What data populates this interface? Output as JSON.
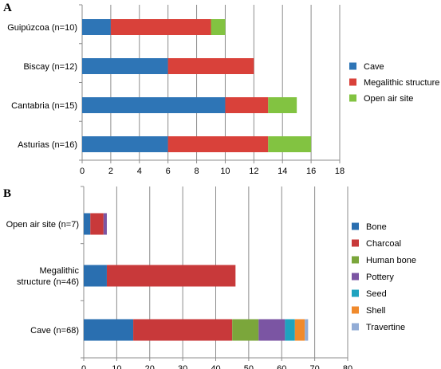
{
  "chart_data": [
    {
      "panel": "A",
      "type": "bar",
      "orientation": "horizontal",
      "stacked": true,
      "categories": [
        "Guipúzcoa (n=10)",
        "Biscay (n=12)",
        "Cantabria (n=15)",
        "Asturias (n=16)"
      ],
      "series": [
        {
          "name": "Cave",
          "color": "#2e75b6",
          "values": [
            2,
            6,
            10,
            6
          ]
        },
        {
          "name": "Megalithic structure",
          "color": "#d9413a",
          "values": [
            7,
            6,
            3,
            7
          ]
        },
        {
          "name": "Open air site",
          "color": "#82c341",
          "values": [
            1,
            0,
            2,
            3
          ]
        }
      ],
      "xlim": [
        0,
        18
      ],
      "xticks": [
        0,
        2,
        4,
        6,
        8,
        10,
        12,
        14,
        16,
        18
      ],
      "grid": "vertical",
      "legend": "right"
    },
    {
      "panel": "B",
      "type": "bar",
      "orientation": "horizontal",
      "stacked": true,
      "categories": [
        [
          "Open air site (n=7)"
        ],
        [
          "Megalithic",
          "structure (n=46)"
        ],
        [
          "Cave (n=68)"
        ]
      ],
      "series": [
        {
          "name": "Bone",
          "color": "#2a6fb0",
          "values": [
            2,
            7,
            15
          ]
        },
        {
          "name": "Charcoal",
          "color": "#c8393a",
          "values": [
            4,
            39,
            30
          ]
        },
        {
          "name": "Human bone",
          "color": "#7ba63b",
          "values": [
            0,
            0,
            8
          ]
        },
        {
          "name": "Pottery",
          "color": "#7b55a3",
          "values": [
            1,
            0,
            8
          ]
        },
        {
          "name": "Seed",
          "color": "#1fa3bf",
          "values": [
            0,
            0,
            3
          ]
        },
        {
          "name": "Shell",
          "color": "#f08a2c",
          "values": [
            0,
            0,
            3
          ]
        },
        {
          "name": "Travertine",
          "color": "#92acd6",
          "values": [
            0,
            0,
            1
          ]
        }
      ],
      "xlim": [
        0,
        80
      ],
      "xticks": [
        0,
        10,
        20,
        30,
        40,
        50,
        60,
        70,
        80
      ],
      "grid": "vertical",
      "legend": "right"
    }
  ]
}
